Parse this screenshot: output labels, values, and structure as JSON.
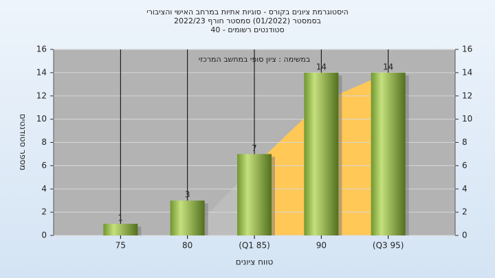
{
  "chart_data": {
    "type": "bar",
    "title": [
      "היסטוגרמת ציונים בקורס - סוגיות אתיות במרחב האישי והציבורי",
      "בסמסטר  (01/2022)  סמסטר חורף  2022/23",
      "סטודנטים רשומים - 40"
    ],
    "annotation": "במשימה : ציון סופי במחשב המרכזי",
    "x_label": "טווח ציונים",
    "y_label": "מספר סטודנטים",
    "categories": [
      "75",
      "80",
      "(Q1 85)",
      "90",
      "(Q3 95)"
    ],
    "values": [
      1,
      3,
      7,
      14,
      14
    ],
    "color": "#8fb84a",
    "area": {
      "values": [
        null,
        0,
        6,
        11.5,
        14
      ],
      "colors": [
        "#bdbdbd",
        "#ffc857"
      ]
    },
    "ylim": [
      0,
      16
    ],
    "yticks": [
      0,
      2,
      4,
      6,
      8,
      10,
      12,
      14,
      16
    ],
    "grid": true
  }
}
